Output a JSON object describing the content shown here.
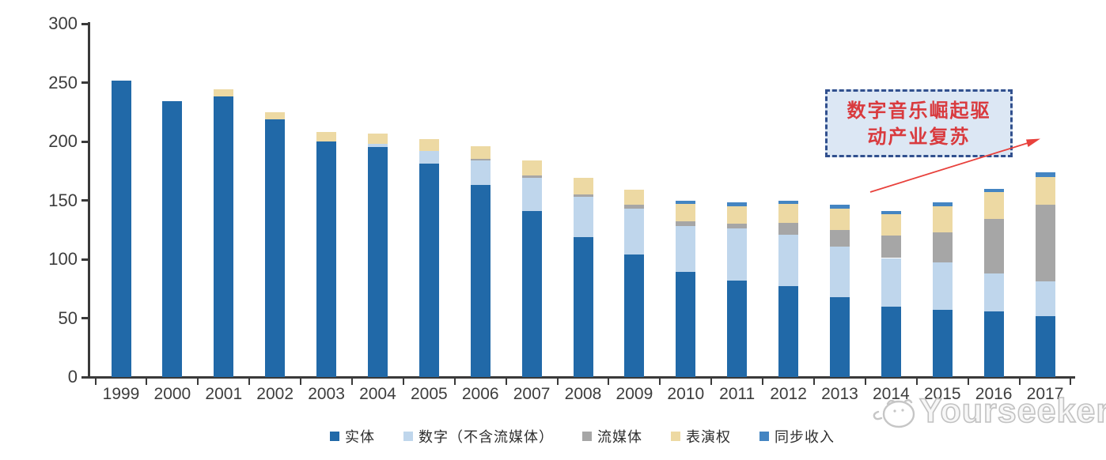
{
  "chart_data": {
    "type": "bar",
    "variant": "stacked",
    "title": "",
    "xlabel": "",
    "ylabel": "",
    "categories": [
      "1999",
      "2000",
      "2001",
      "2002",
      "2003",
      "2004",
      "2005",
      "2006",
      "2007",
      "2008",
      "2009",
      "2010",
      "2011",
      "2012",
      "2013",
      "2014",
      "2015",
      "2016",
      "2017"
    ],
    "series": [
      {
        "key": "physical",
        "label": "实体",
        "color": "#2169a8",
        "values": [
          252,
          234,
          238,
          219,
          200,
          195,
          181,
          163,
          141,
          119,
          104,
          89,
          82,
          77,
          68,
          60,
          57,
          56,
          52
        ]
      },
      {
        "key": "digital-excl-streaming",
        "label": "数字（不含流媒体）",
        "color": "#bfd6ec",
        "values": [
          0,
          0,
          0,
          0,
          0,
          3,
          11,
          21,
          28,
          34,
          39,
          39,
          44,
          44,
          43,
          41,
          40,
          32,
          29
        ]
      },
      {
        "key": "streaming",
        "label": "流媒体",
        "color": "#a6a6a6",
        "values": [
          0,
          0,
          0,
          0,
          0,
          0,
          0,
          1,
          2,
          2,
          3,
          4,
          4,
          10,
          14,
          19,
          26,
          46,
          65
        ]
      },
      {
        "key": "performance-rights",
        "label": "表演权",
        "color": "#edd9a3",
        "values": [
          0,
          0,
          6,
          6,
          8,
          9,
          10,
          11,
          13,
          14,
          13,
          15,
          15,
          16,
          18,
          18,
          22,
          23,
          24
        ]
      },
      {
        "key": "sync-revenue",
        "label": "同步收入",
        "color": "#4485c2",
        "values": [
          0,
          0,
          0,
          0,
          0,
          0,
          0,
          0,
          0,
          0,
          0,
          3,
          3,
          3,
          3,
          3,
          3,
          3,
          4
        ]
      }
    ],
    "ylim": [
      0,
      300
    ],
    "yticks": [
      0,
      50,
      100,
      150,
      200,
      250,
      300
    ],
    "grid": false,
    "legend_position": "bottom",
    "axis_color": "#3a3a3a"
  },
  "annotation": {
    "text_lines": [
      "数字音乐崛起驱",
      "动产业复苏"
    ],
    "box_bg": "#dce7f4",
    "border_color": "#31508e",
    "text_color": "#d93a3e",
    "arrow_color": "#e8413c"
  },
  "watermark": {
    "text": "Yourseeker"
  }
}
